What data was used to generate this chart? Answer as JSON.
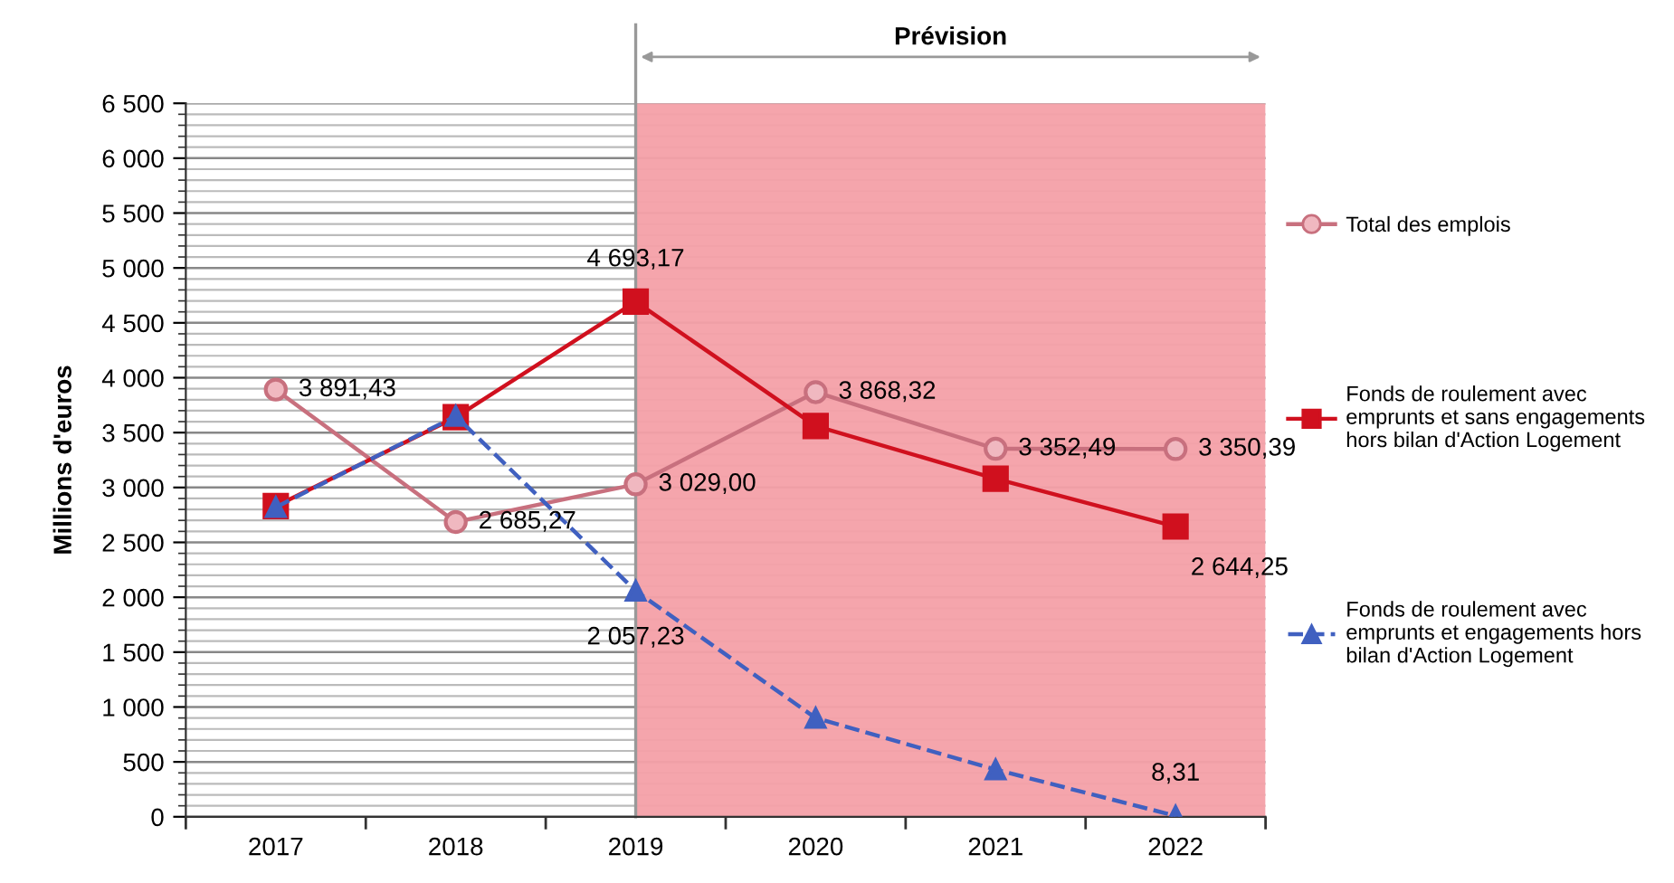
{
  "chart_data": {
    "type": "line",
    "ylabel": "Millions d'euros",
    "x": [
      2017,
      2018,
      2019,
      2020,
      2021,
      2022
    ],
    "xlim": [
      2016.5,
      2022.5
    ],
    "xticks": [
      {
        "value": 2016.5,
        "label": null
      },
      2017,
      {
        "value": 2017.5,
        "label": null
      },
      2018,
      {
        "value": 2018.5,
        "label": null
      },
      2019,
      {
        "value": 2019.5,
        "label": null
      },
      2020,
      {
        "value": 2020.5,
        "label": null
      },
      2021,
      {
        "value": 2021.5,
        "label": null
      },
      2022,
      {
        "value": 2022.5,
        "label": null
      }
    ],
    "ylim": [
      0,
      6500
    ],
    "yticks": [
      {
        "value": 0,
        "label": "0"
      },
      {
        "value": 500,
        "label": "500"
      },
      {
        "value": 1000,
        "label": "1 000"
      },
      {
        "value": 1500,
        "label": "1 500"
      },
      {
        "value": 2000,
        "label": "2 000"
      },
      {
        "value": 2500,
        "label": "2 500"
      },
      {
        "value": 3000,
        "label": "3 000"
      },
      {
        "value": 3500,
        "label": "3 500"
      },
      {
        "value": 4000,
        "label": "4 000"
      },
      {
        "value": 4500,
        "label": "4 500"
      },
      {
        "value": 5000,
        "label": "5 000"
      },
      {
        "value": 5500,
        "label": "5 500"
      },
      {
        "value": 6000,
        "label": "6 000"
      },
      {
        "value": 6500,
        "label": "6 500"
      }
    ],
    "grid": "y",
    "legend": "right",
    "ref_lines": [
      {
        "axis": "x",
        "value": 2019,
        "color": "#999999"
      }
    ],
    "bands": [
      {
        "axis": "x",
        "from": 2019,
        "to": 2022.5,
        "label": "Prévision",
        "color": "#f4a0a8"
      }
    ],
    "series": [
      {
        "name": "Total des emplois",
        "color": "#c8707e",
        "marker": "circle",
        "line_style": "solid",
        "values": [
          3891.43,
          2685.27,
          3029.0,
          3868.32,
          3352.49,
          3350.39
        ],
        "value_labels": [
          "3 891,43",
          "2 685,27",
          "3 029,00",
          "3 868,32",
          "3 352,49",
          "3 350,39"
        ]
      },
      {
        "name": "Fonds de roulement avec emprunts et sans engagements hors bilan d'Action Logement",
        "color": "#d0101e",
        "marker": "square",
        "line_style": "solid",
        "values": [
          2830,
          3640,
          4693.17,
          3560,
          3080,
          2644.25
        ],
        "value_labels": [
          null,
          null,
          "4 693,17",
          null,
          null,
          "2 644,25"
        ]
      },
      {
        "name": "Fonds de roulement avec emprunts et engagements hors bilan d'Action Logement",
        "color": "#4060c0",
        "marker": "triangle",
        "line_style": "dashed",
        "values": [
          2820,
          3650,
          2057.23,
          900,
          430,
          8.31
        ],
        "value_labels": [
          null,
          null,
          "2 057,23",
          null,
          null,
          "8,31"
        ]
      }
    ]
  }
}
